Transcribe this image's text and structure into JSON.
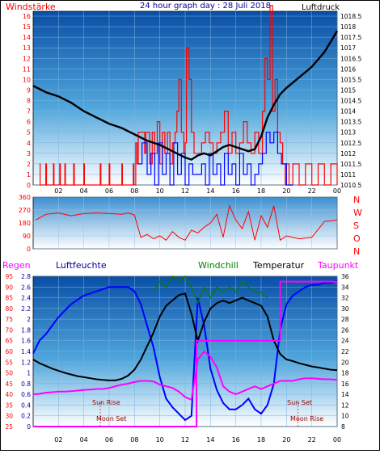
{
  "header": {
    "left_label": "Windstärke",
    "title": "24 hour graph day : 28 Juli 2018",
    "right_label": "Luftdruck"
  },
  "colors": {
    "red": "#ff0000",
    "blue": "#0000ff",
    "black": "#000000",
    "green": "#008000",
    "magenta": "#ff00ff",
    "title_blue": "#000099"
  },
  "chart_data": [
    {
      "type": "line",
      "name": "top",
      "x_ticks": [
        "02",
        "04",
        "06",
        "08",
        "10",
        "12",
        "14",
        "16",
        "18",
        "20",
        "22",
        "00"
      ],
      "y_left_ticks": [
        "0",
        "1",
        "2",
        "3",
        "4",
        "5",
        "6",
        "7",
        "8",
        "9",
        "10",
        "11",
        "12",
        "13",
        "14",
        "15",
        "16"
      ],
      "y_right_ticks": [
        "1010.5",
        "1011",
        "1011.5",
        "1012",
        "1012.5",
        "1013",
        "1013.5",
        "1014",
        "1014.5",
        "1015",
        "1015.5",
        "1016",
        "1016.5",
        "1017",
        "1017.5",
        "1018",
        "1018.5"
      ],
      "ylim_left": [
        0,
        16
      ],
      "ylim_right": [
        1010.5,
        1018.5
      ],
      "series": [
        {
          "name": "Windstärke",
          "color": "red",
          "x": [
            0.5,
            0.55,
            1.0,
            1.05,
            1.6,
            1.65,
            2.1,
            2.15,
            2.5,
            2.55,
            3.2,
            3.25,
            4.0,
            4.05,
            5.3,
            5.35,
            6.0,
            6.05,
            7.0,
            7.05,
            7.9,
            7.95,
            8.1,
            8.2,
            8.3,
            8.8,
            8.9,
            9.2,
            9.4,
            9.6,
            9.8,
            10.0,
            10.2,
            10.4,
            10.6,
            10.8,
            11.0,
            11.2,
            11.35,
            11.5,
            11.7,
            11.9,
            12.0,
            12.1,
            12.3,
            12.5,
            12.7,
            13.0,
            13.3,
            13.6,
            13.9,
            14.2,
            14.5,
            14.8,
            15.1,
            15.4,
            15.7,
            16.0,
            16.3,
            16.6,
            16.9,
            17.2,
            17.5,
            17.8,
            18.1,
            18.3,
            18.5,
            18.7,
            18.9,
            19.1,
            19.3,
            19.5,
            19.7,
            19.9,
            20.0,
            20.2,
            20.5,
            21.0,
            21.5,
            22.0,
            22.5,
            23.0,
            23.5,
            24.0
          ],
          "values": [
            2,
            0,
            2,
            0,
            2,
            0,
            2,
            0,
            2,
            0,
            2,
            0,
            2,
            0,
            2,
            0,
            2,
            0,
            2,
            0,
            2,
            0,
            4,
            2,
            5,
            3,
            5,
            2,
            5,
            3,
            6,
            2,
            5,
            3,
            5,
            2,
            4,
            5,
            7,
            10,
            5,
            3,
            4,
            13,
            10,
            5,
            3,
            3,
            4,
            5,
            4,
            3,
            4,
            5,
            7,
            3,
            5,
            3,
            4,
            6,
            4,
            3,
            5,
            3,
            7,
            12,
            10,
            17,
            7,
            10,
            5,
            4,
            2,
            0,
            2,
            0,
            2,
            0,
            2,
            0,
            2,
            0,
            2,
            0
          ]
        },
        {
          "name": "Böen",
          "color": "blue",
          "x": [
            8.3,
            8.6,
            9.0,
            9.3,
            9.6,
            9.9,
            10.2,
            10.5,
            10.8,
            11.1,
            11.4,
            11.7,
            12.0,
            12.3,
            12.6,
            13.0,
            13.3,
            13.6,
            13.9,
            14.2,
            14.5,
            14.8,
            15.1,
            15.4,
            15.7,
            16.0,
            16.3,
            16.6,
            16.9,
            17.2,
            17.5,
            17.8,
            18.1,
            18.4,
            18.7,
            19.0,
            19.3,
            19.6,
            20.0,
            20.5
          ],
          "values": [
            2,
            4,
            1,
            3,
            0,
            4,
            1,
            3,
            0,
            4,
            1,
            3,
            0,
            2,
            1,
            1,
            2,
            0,
            3,
            1,
            2,
            0,
            3,
            1,
            2,
            0,
            3,
            1,
            2,
            0,
            1,
            2,
            3,
            5,
            4,
            5,
            3,
            2,
            0,
            0
          ]
        },
        {
          "name": "Luftdruck",
          "color": "black",
          "axis": "right",
          "x": [
            0,
            1,
            2,
            3,
            4,
            5,
            6,
            7,
            8,
            9,
            10,
            11,
            12,
            12.5,
            13,
            13.5,
            14,
            14.5,
            15,
            15.5,
            16,
            16.5,
            17,
            17.5,
            18,
            18.5,
            19,
            19.5,
            20,
            21,
            22,
            23,
            23.5,
            24
          ],
          "values": [
            1015.2,
            1014.9,
            1014.7,
            1014.4,
            1014.0,
            1013.7,
            1013.4,
            1013.2,
            1012.9,
            1012.6,
            1012.4,
            1012.1,
            1011.8,
            1011.7,
            1011.9,
            1012.0,
            1011.9,
            1012.1,
            1012.3,
            1012.4,
            1012.3,
            1012.2,
            1012.1,
            1012.2,
            1012.8,
            1013.7,
            1014.3,
            1014.8,
            1015.1,
            1015.6,
            1016.1,
            1016.8,
            1017.3,
            1017.8
          ]
        }
      ]
    },
    {
      "type": "scatter",
      "name": "direction",
      "y_left_ticks": [
        "360",
        "270",
        "180",
        "90",
        "0"
      ],
      "y_right_ticks": [
        "N",
        "W",
        "S",
        "O",
        "N"
      ],
      "ylim": [
        0,
        360
      ],
      "series": [
        {
          "name": "Windrichtung",
          "color": "red",
          "x": [
            0.2,
            1,
            2,
            3,
            4,
            5,
            6,
            7,
            7.5,
            8,
            8.5,
            9,
            9.5,
            10,
            10.5,
            11,
            11.5,
            12,
            12.5,
            13,
            13.5,
            14,
            14.5,
            15,
            15.5,
            16,
            16.5,
            17,
            17.5,
            18,
            18.5,
            19,
            19.5,
            20,
            21,
            22,
            23,
            24
          ],
          "values": [
            200,
            240,
            250,
            230,
            245,
            250,
            245,
            240,
            250,
            235,
            80,
            100,
            70,
            90,
            60,
            120,
            80,
            60,
            130,
            110,
            150,
            180,
            240,
            80,
            300,
            200,
            140,
            260,
            60,
            230,
            150,
            300,
            60,
            90,
            70,
            80,
            190,
            200
          ]
        }
      ]
    },
    {
      "type": "line",
      "name": "bottom",
      "y_left_ticks": [
        "25",
        "30",
        "35",
        "40",
        "45",
        "50",
        "55",
        "60",
        "65",
        "70",
        "75",
        "80",
        "85",
        "90",
        "95"
      ],
      "y_left2_ticks": [
        "0",
        "0.2",
        "0.4",
        "0.6",
        "0.8",
        "1",
        "1.2",
        "1.4",
        "1.6",
        "1.8",
        "2",
        "2.2",
        "2.4",
        "2.6",
        "2.8"
      ],
      "y_right_ticks": [
        "8",
        "10",
        "12",
        "14",
        "16",
        "18",
        "20",
        "22",
        "24",
        "26",
        "28",
        "30",
        "32",
        "34",
        "36"
      ],
      "legend": [
        "Regen",
        "Luftfeuchte",
        "Windchill",
        "Temperatur",
        "Taupunkt"
      ],
      "ylim_humidity": [
        25,
        95
      ],
      "ylim_temp": [
        8,
        36
      ],
      "annotations": [
        "Sun Rise",
        "Moon Set",
        "Sun Set",
        "Moon Rise"
      ],
      "series": [
        {
          "name": "Luftfeuchte",
          "color": "blue",
          "x": [
            0,
            0.5,
            1,
            1.5,
            2,
            2.5,
            3,
            3.5,
            4,
            4.5,
            5,
            5.5,
            6,
            6.5,
            7,
            7.5,
            8,
            8.5,
            9,
            9.5,
            10,
            10.5,
            11,
            11.5,
            12,
            12.5,
            13,
            13.5,
            14,
            14.5,
            15,
            15.5,
            16,
            16.5,
            17,
            17.5,
            18,
            18.5,
            19,
            19.5,
            20,
            20.5,
            21,
            21.5,
            22,
            22.5,
            23,
            23.5,
            24
          ],
          "values": [
            59,
            65,
            68,
            72,
            76,
            79,
            82,
            84,
            86,
            87,
            88,
            89,
            90,
            90,
            90,
            90,
            88,
            82,
            72,
            62,
            48,
            38,
            34,
            31,
            28,
            30,
            85,
            72,
            52,
            42,
            36,
            33,
            33,
            35,
            38,
            33,
            31,
            35,
            45,
            70,
            82,
            86,
            88,
            90,
            91,
            91,
            92,
            92,
            93
          ]
        },
        {
          "name": "Temperatur",
          "color": "black",
          "axis": "temp",
          "x": [
            0,
            0.5,
            1,
            1.5,
            2,
            2.5,
            3,
            3.5,
            4,
            4.5,
            5,
            5.5,
            6,
            6.5,
            7,
            7.5,
            8,
            8.5,
            9,
            9.5,
            10,
            10.5,
            11,
            11.5,
            12,
            12.5,
            13,
            13.5,
            14,
            14.5,
            15,
            15.5,
            16,
            16.5,
            17,
            17.5,
            18,
            18.5,
            19,
            19.5,
            20,
            20.5,
            21,
            21.5,
            22,
            22.5,
            23,
            23.5,
            24
          ],
          "values": [
            20.5,
            19.8,
            19.3,
            18.8,
            18.4,
            18.0,
            17.7,
            17.4,
            17.2,
            17.0,
            16.8,
            16.7,
            16.6,
            16.6,
            16.9,
            17.5,
            18.6,
            20.5,
            23.0,
            25.5,
            28.5,
            30.5,
            31.5,
            32.5,
            32.8,
            29.0,
            24.0,
            27.5,
            30.0,
            31.0,
            31.5,
            31.0,
            31.5,
            32.0,
            31.5,
            31.0,
            30.5,
            28.5,
            24.0,
            21.5,
            20.5,
            20.2,
            19.8,
            19.5,
            19.2,
            19.0,
            18.8,
            18.6,
            18.5
          ]
        },
        {
          "name": "Windchill",
          "color": "green",
          "axis": "temp",
          "x": [
            9.5,
            10,
            10.5,
            11,
            11.5,
            12,
            12.5,
            13,
            13.5,
            14,
            14.5,
            15,
            15.5,
            16,
            16.5,
            17,
            17.5,
            18,
            18.5
          ],
          "values": [
            33,
            35,
            34,
            36,
            35,
            36,
            34,
            31,
            34,
            32,
            34,
            33,
            34,
            33,
            35,
            34,
            33,
            33,
            32
          ]
        },
        {
          "name": "Taupunkt",
          "color": "magenta",
          "axis": "temp",
          "x": [
            0,
            0.5,
            1,
            1.5,
            2,
            2.5,
            3,
            3.5,
            4,
            4.5,
            5,
            5.5,
            6,
            6.5,
            7,
            7.5,
            8,
            8.5,
            9,
            9.5,
            10,
            10.5,
            11,
            11.5,
            12,
            12.5,
            13,
            13.5,
            14,
            14.5,
            15,
            15.5,
            16,
            16.5,
            17,
            17.5,
            18,
            18.5,
            19,
            19.5,
            20,
            20.5,
            21,
            21.5,
            22,
            22.5,
            23,
            23.5,
            24
          ],
          "values": [
            14.0,
            14.1,
            14.3,
            14.4,
            14.5,
            14.5,
            14.6,
            14.7,
            14.8,
            14.9,
            15.0,
            15.0,
            15.2,
            15.5,
            15.8,
            16.0,
            16.3,
            16.5,
            16.5,
            16.4,
            15.8,
            15.5,
            15.2,
            14.5,
            13.5,
            13.0,
            20.5,
            22.0,
            21.0,
            19.0,
            15.5,
            14.5,
            14.0,
            14.5,
            15.0,
            15.5,
            15.0,
            15.5,
            16.0,
            16.5,
            16.5,
            16.5,
            16.8,
            17.0,
            17.0,
            16.9,
            16.8,
            16.8,
            16.7
          ]
        },
        {
          "name": "Regen",
          "color": "magenta",
          "axis": "rain",
          "x": [
            0,
            12.9,
            12.9,
            19.5,
            19.5,
            24
          ],
          "values": [
            0,
            0,
            1.6,
            1.6,
            2.7,
            2.7
          ]
        }
      ]
    }
  ]
}
